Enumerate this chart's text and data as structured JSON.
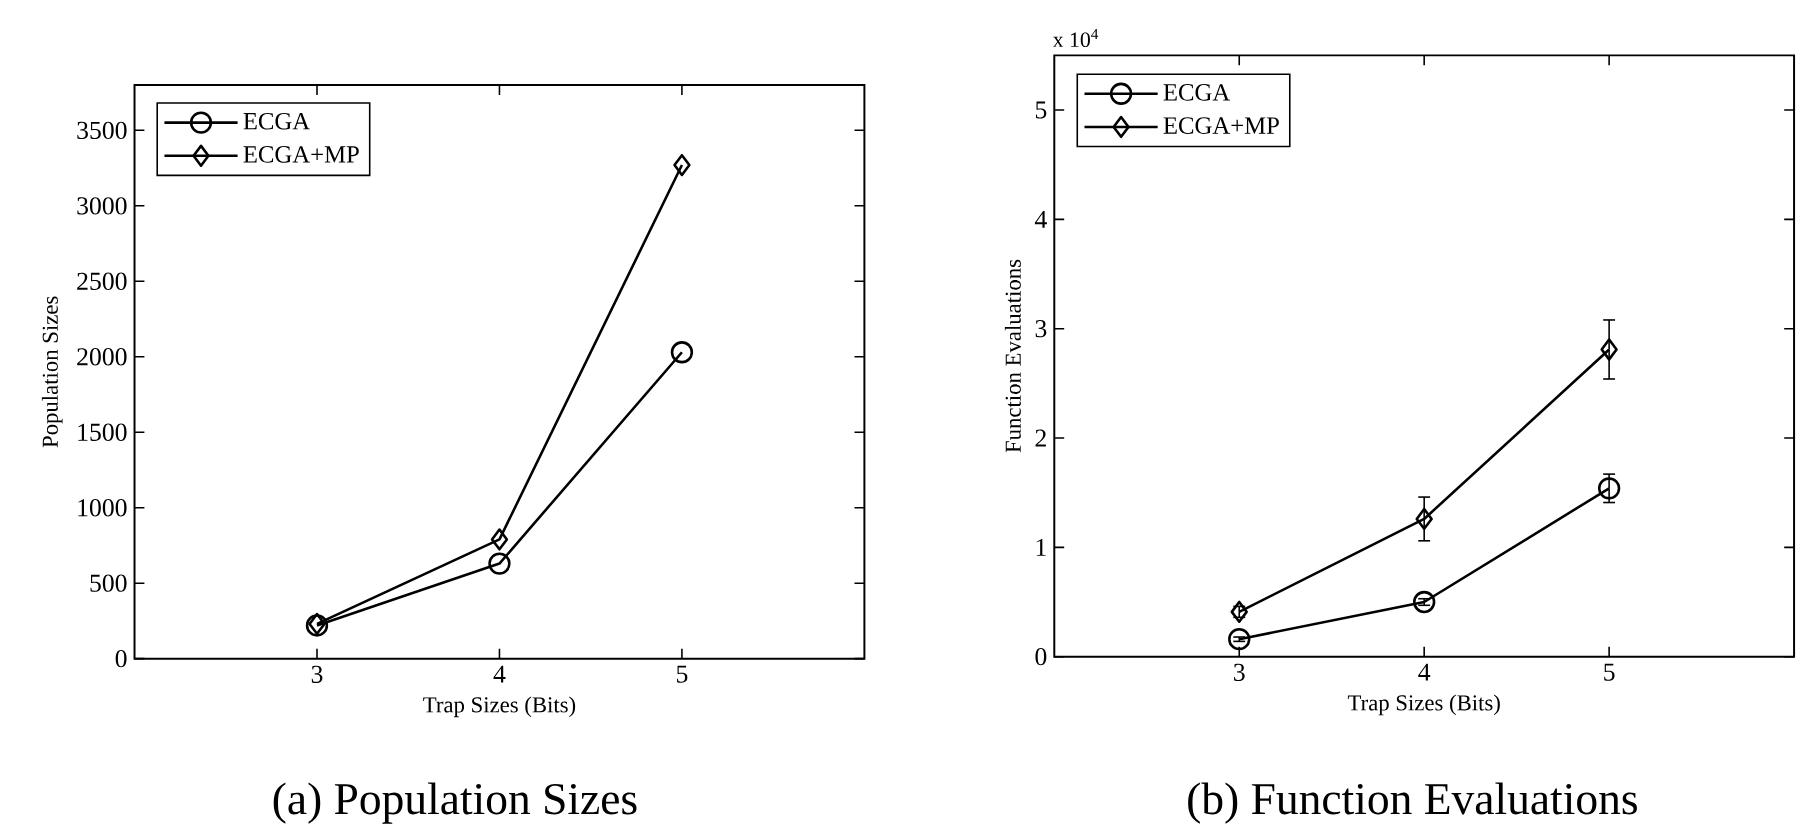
{
  "chart_data": [
    {
      "type": "line",
      "xlabel": "Trap Sizes (Bits)",
      "ylabel": "Population Sizes",
      "x": [
        3,
        4,
        5
      ],
      "xlim": [
        2,
        6
      ],
      "xticks": [
        3,
        4,
        5
      ],
      "ylim": [
        0,
        3800
      ],
      "yticks": [
        0,
        500,
        1000,
        1500,
        2000,
        2500,
        3000,
        3500
      ],
      "legend": "top left",
      "line_style": "solid",
      "series": [
        {
          "name": "ECGA",
          "color": "#000000",
          "marker": "circle",
          "values": [
            220,
            630,
            2030
          ]
        },
        {
          "name": "ECGA+MP",
          "color": "#000000",
          "marker": "diamond",
          "values": [
            230,
            790,
            3270
          ]
        }
      ],
      "annotations": [
        "(a) Population Sizes"
      ]
    },
    {
      "type": "line",
      "xlabel": "Trap Sizes (Bits)",
      "ylabel": "Function Evaluations",
      "x": [
        3,
        4,
        5
      ],
      "xlim": [
        2,
        6
      ],
      "xticks": [
        3,
        4,
        5
      ],
      "ylim": [
        0,
        5.5
      ],
      "yticks": [
        0,
        1,
        2,
        3,
        4,
        5
      ],
      "legend": "top left",
      "line_style": "solid",
      "series": [
        {
          "name": "ECGA",
          "color": "#000000",
          "marker": "circle",
          "values": [
            0.16,
            0.5,
            1.54
          ],
          "errors": [
            0.02,
            0.03,
            0.13
          ]
        },
        {
          "name": "ECGA+MP",
          "color": "#000000",
          "marker": "diamond",
          "values": [
            0.41,
            1.26,
            2.81
          ],
          "errors": [
            0.05,
            0.2,
            0.27
          ]
        }
      ],
      "annotations": [
        "x 10$^{4}$",
        "(b) Function Evaluations"
      ]
    }
  ]
}
